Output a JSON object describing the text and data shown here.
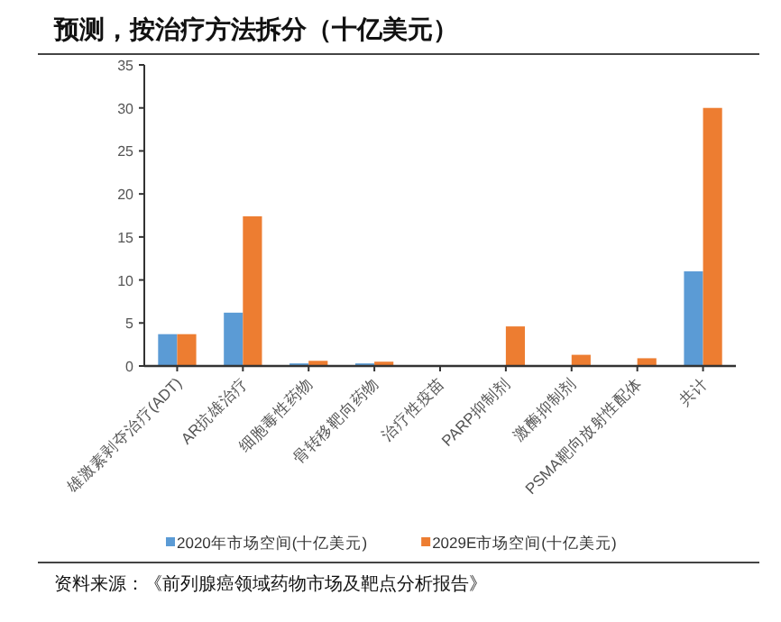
{
  "chart_data": {
    "type": "bar",
    "title": "预测，按治疗方法拆分（十亿美元）",
    "categories": [
      "雄激素剥夺治疗(ADT)",
      "AR抗雄治疗",
      "细胞毒性药物",
      "骨转移靶向药物",
      "治疗性疫苗",
      "PARP抑制剂",
      "激酶抑制剂",
      "PSMA靶向放射性配体",
      "共计"
    ],
    "series": [
      {
        "name": "2020年市场空间(十亿美元)",
        "color": "#5b9bd5",
        "values": [
          3.7,
          6.2,
          0.3,
          0.3,
          0,
          0,
          0,
          0,
          11.0
        ]
      },
      {
        "name": "2029E市场空间(十亿美元)",
        "color": "#ed7d31",
        "values": [
          3.7,
          17.4,
          0.6,
          0.5,
          0,
          4.6,
          1.3,
          0.9,
          30.0
        ]
      }
    ],
    "ylim": [
      0,
      35
    ],
    "yticks": [
      0,
      5,
      10,
      15,
      20,
      25,
      30,
      35
    ],
    "legend": "bottom",
    "annotations": [
      "资料来源：《前列腺癌领域药物市场及靶点分析报告》"
    ]
  }
}
